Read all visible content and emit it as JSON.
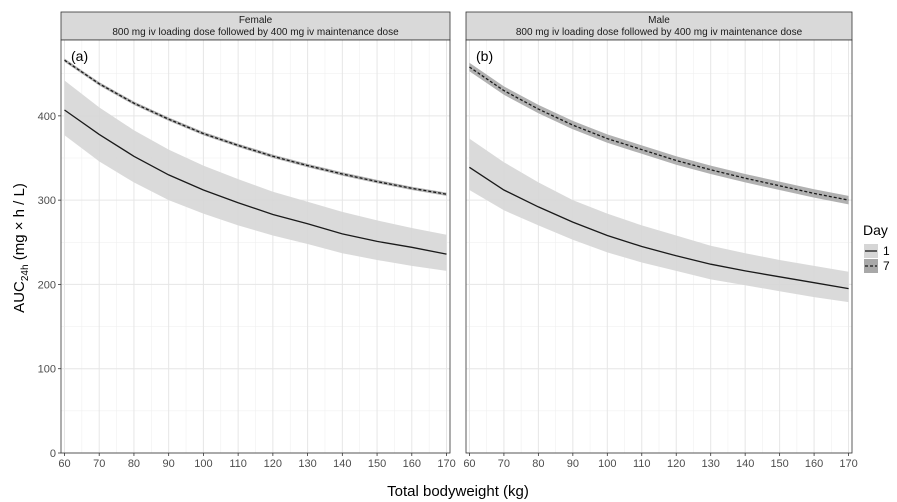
{
  "chart_data": {
    "type": "line",
    "xlabel": "Total bodyweight (kg)",
    "ylabel_main": "AUC",
    "ylabel_sub": "24h",
    "ylabel_units": " (mg × h / L)",
    "xlim": [
      59,
      171
    ],
    "ylim": [
      0,
      490
    ],
    "x_ticks": [
      60,
      70,
      80,
      90,
      100,
      110,
      120,
      130,
      140,
      150,
      160,
      170
    ],
    "y_ticks": [
      0,
      100,
      200,
      300,
      400
    ],
    "grid": true,
    "legend": {
      "title": "Day",
      "position": "right",
      "entries": [
        {
          "label": "1",
          "line": "solid",
          "fill": "#d6d6d6"
        },
        {
          "label": "7",
          "line": "dashed",
          "fill": "#a8a8a8"
        }
      ]
    },
    "panels": [
      {
        "tag": "(a)",
        "strip": [
          "Female",
          "800 mg iv loading dose followed by 400 mg iv maintenance dose"
        ],
        "x": [
          60,
          70,
          80,
          90,
          100,
          110,
          120,
          130,
          140,
          150,
          160,
          170
        ],
        "series": [
          {
            "name": "1",
            "line": "solid",
            "median": [
              407,
              378,
              352,
              330,
              312,
              297,
              283,
              272,
              260,
              251,
              244,
              236
            ],
            "lower": [
              377,
              346,
              321,
              300,
              284,
              270,
              258,
              248,
              237,
              229,
              222,
              216
            ],
            "upper": [
              442,
              410,
              383,
              360,
              341,
              325,
              310,
              298,
              286,
              276,
              267,
              259
            ]
          },
          {
            "name": "7",
            "line": "dashed",
            "median": [
              466,
              438,
              415,
              396,
              379,
              365,
              352,
              341,
              331,
              322,
              314,
              307
            ],
            "lower": [
              464,
              436,
              413,
              394,
              377,
              363,
              350,
              339,
              329,
              320,
              312,
              305
            ],
            "upper": [
              468,
              440,
              417,
              398,
              381,
              367,
              354,
              343,
              333,
              324,
              316,
              309
            ]
          }
        ]
      },
      {
        "tag": "(b)",
        "strip": [
          "Male",
          "800 mg iv loading dose followed by 400 mg iv maintenance dose"
        ],
        "x": [
          60,
          70,
          80,
          90,
          100,
          110,
          120,
          130,
          140,
          150,
          160,
          170
        ],
        "series": [
          {
            "name": "1",
            "line": "solid",
            "median": [
              339,
              312,
              292,
              274,
              258,
              245,
              234,
              224,
              216,
              209,
              202,
              195
            ],
            "lower": [
              312,
              288,
              270,
              253,
              238,
              226,
              216,
              206,
              199,
              192,
              185,
              179
            ],
            "upper": [
              373,
              345,
              321,
              300,
              284,
              270,
              258,
              246,
              237,
              229,
              222,
              215
            ]
          },
          {
            "name": "7",
            "line": "dashed",
            "median": [
              458,
              430,
              408,
              389,
              373,
              360,
              347,
              336,
              326,
              317,
              308,
              300
            ],
            "lower": [
              453,
              425,
              403,
              384,
              368,
              355,
              342,
              331,
              321,
              312,
              303,
              295
            ],
            "upper": [
              463,
              435,
              413,
              394,
              378,
              365,
              352,
              341,
              331,
              322,
              313,
              305
            ]
          }
        ]
      }
    ]
  }
}
